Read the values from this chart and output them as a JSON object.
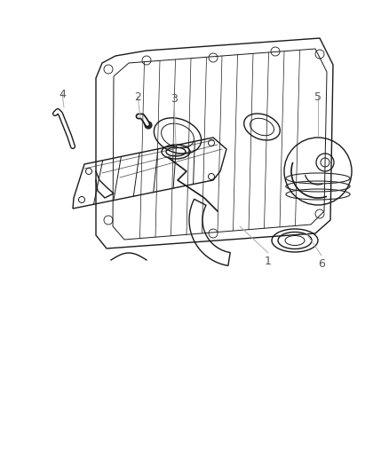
{
  "bg_color": "#ffffff",
  "line_color": "#1a1a1a",
  "label_color": "#555555",
  "leader_color": "#aaaaaa",
  "label_fontsize": 9,
  "figsize": [
    4.38,
    5.33
  ],
  "dpi": 100
}
